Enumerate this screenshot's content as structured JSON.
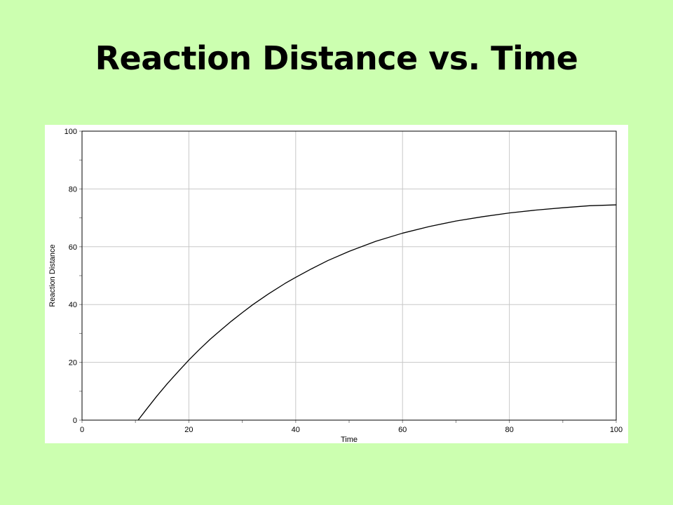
{
  "slide": {
    "title": "Reaction Distance vs. Time"
  },
  "chart_data": {
    "type": "line",
    "title": "",
    "xlabel": "Time",
    "ylabel": "Reaction Distance",
    "xlim": [
      0,
      100
    ],
    "ylim": [
      0,
      100
    ],
    "x_ticks": [
      0,
      20,
      40,
      60,
      80,
      100
    ],
    "y_ticks": [
      0,
      20,
      40,
      60,
      80,
      100
    ],
    "grid": true,
    "legend": "none",
    "line_color": "#000000",
    "series": [
      {
        "x": [
          10.5,
          12,
          14,
          16,
          18,
          20,
          22,
          24,
          26,
          28,
          30,
          32,
          35,
          38,
          40,
          43,
          46,
          50,
          55,
          60,
          65,
          70,
          75,
          80,
          85,
          90,
          95,
          100
        ],
        "y": [
          0,
          3.6,
          8.3,
          12.7,
          16.8,
          20.8,
          24.5,
          28.0,
          31.2,
          34.3,
          37.2,
          40.0,
          43.8,
          47.3,
          49.4,
          52.4,
          55.2,
          58.4,
          61.9,
          64.7,
          67.0,
          68.9,
          70.4,
          71.7,
          72.7,
          73.5,
          74.2,
          74.5
        ]
      }
    ]
  }
}
